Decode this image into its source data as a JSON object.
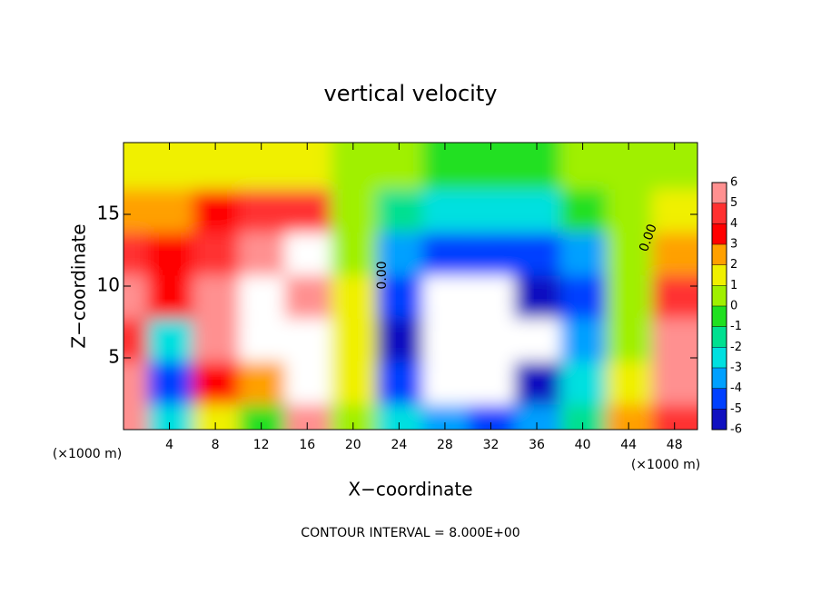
{
  "chart_data": {
    "type": "heatmap",
    "title": "vertical velocity",
    "xlabel": "X−coordinate",
    "ylabel": "Z−coordinate",
    "x_unit": "(×1000 m)",
    "footer": "CONTOUR INTERVAL = 8.000E+00",
    "contour_labels": [
      "0.00",
      "0.00"
    ],
    "xlim": [
      0,
      50
    ],
    "ylim": [
      0,
      20
    ],
    "xticks": [
      4,
      8,
      12,
      16,
      20,
      24,
      28,
      32,
      36,
      40,
      44,
      48
    ],
    "yticks": [
      5,
      10,
      15
    ],
    "x": [
      1,
      5,
      9,
      13,
      17,
      21,
      25,
      29,
      33,
      37,
      41,
      45,
      49
    ],
    "y": [
      1,
      4,
      7,
      10,
      13,
      16,
      19
    ],
    "z": [
      [
        5,
        -3,
        1,
        -1,
        5,
        0,
        -3,
        -4,
        -5,
        -4,
        -2,
        2,
        4
      ],
      [
        6,
        -5,
        3,
        2,
        8,
        1,
        -5,
        -8,
        -7,
        -6,
        -3,
        1,
        6
      ],
      [
        4,
        -3,
        5,
        8,
        7,
        1,
        -6,
        -8,
        -7,
        -7,
        -4,
        0,
        5
      ],
      [
        5,
        3,
        5,
        7,
        6,
        1,
        -5,
        -7,
        -7,
        -6,
        -5,
        0,
        4
      ],
      [
        4,
        3,
        4,
        6,
        7,
        0,
        -4,
        -5,
        -5,
        -5,
        -4,
        0,
        2
      ],
      [
        2,
        2,
        3,
        4,
        4,
        0,
        -2,
        -3,
        -3,
        -3,
        -1,
        0.5,
        1
      ],
      [
        1,
        1,
        1,
        1,
        1,
        0.5,
        0,
        -1,
        -1,
        -1,
        0,
        0.5,
        0.5
      ]
    ],
    "levels": [
      6,
      5,
      4,
      3,
      2,
      1,
      0,
      -1,
      -2,
      -3,
      -4,
      -5,
      -6
    ],
    "level_colors": [
      "#ff9090",
      "#ff3030",
      "#ff0000",
      "#ffa000",
      "#f0f000",
      "#a0f000",
      "#20e020",
      "#00e090",
      "#00e0e0",
      "#00a0ff",
      "#0040ff",
      "#1010c0"
    ],
    "out_of_range_color": "#ffffff"
  }
}
